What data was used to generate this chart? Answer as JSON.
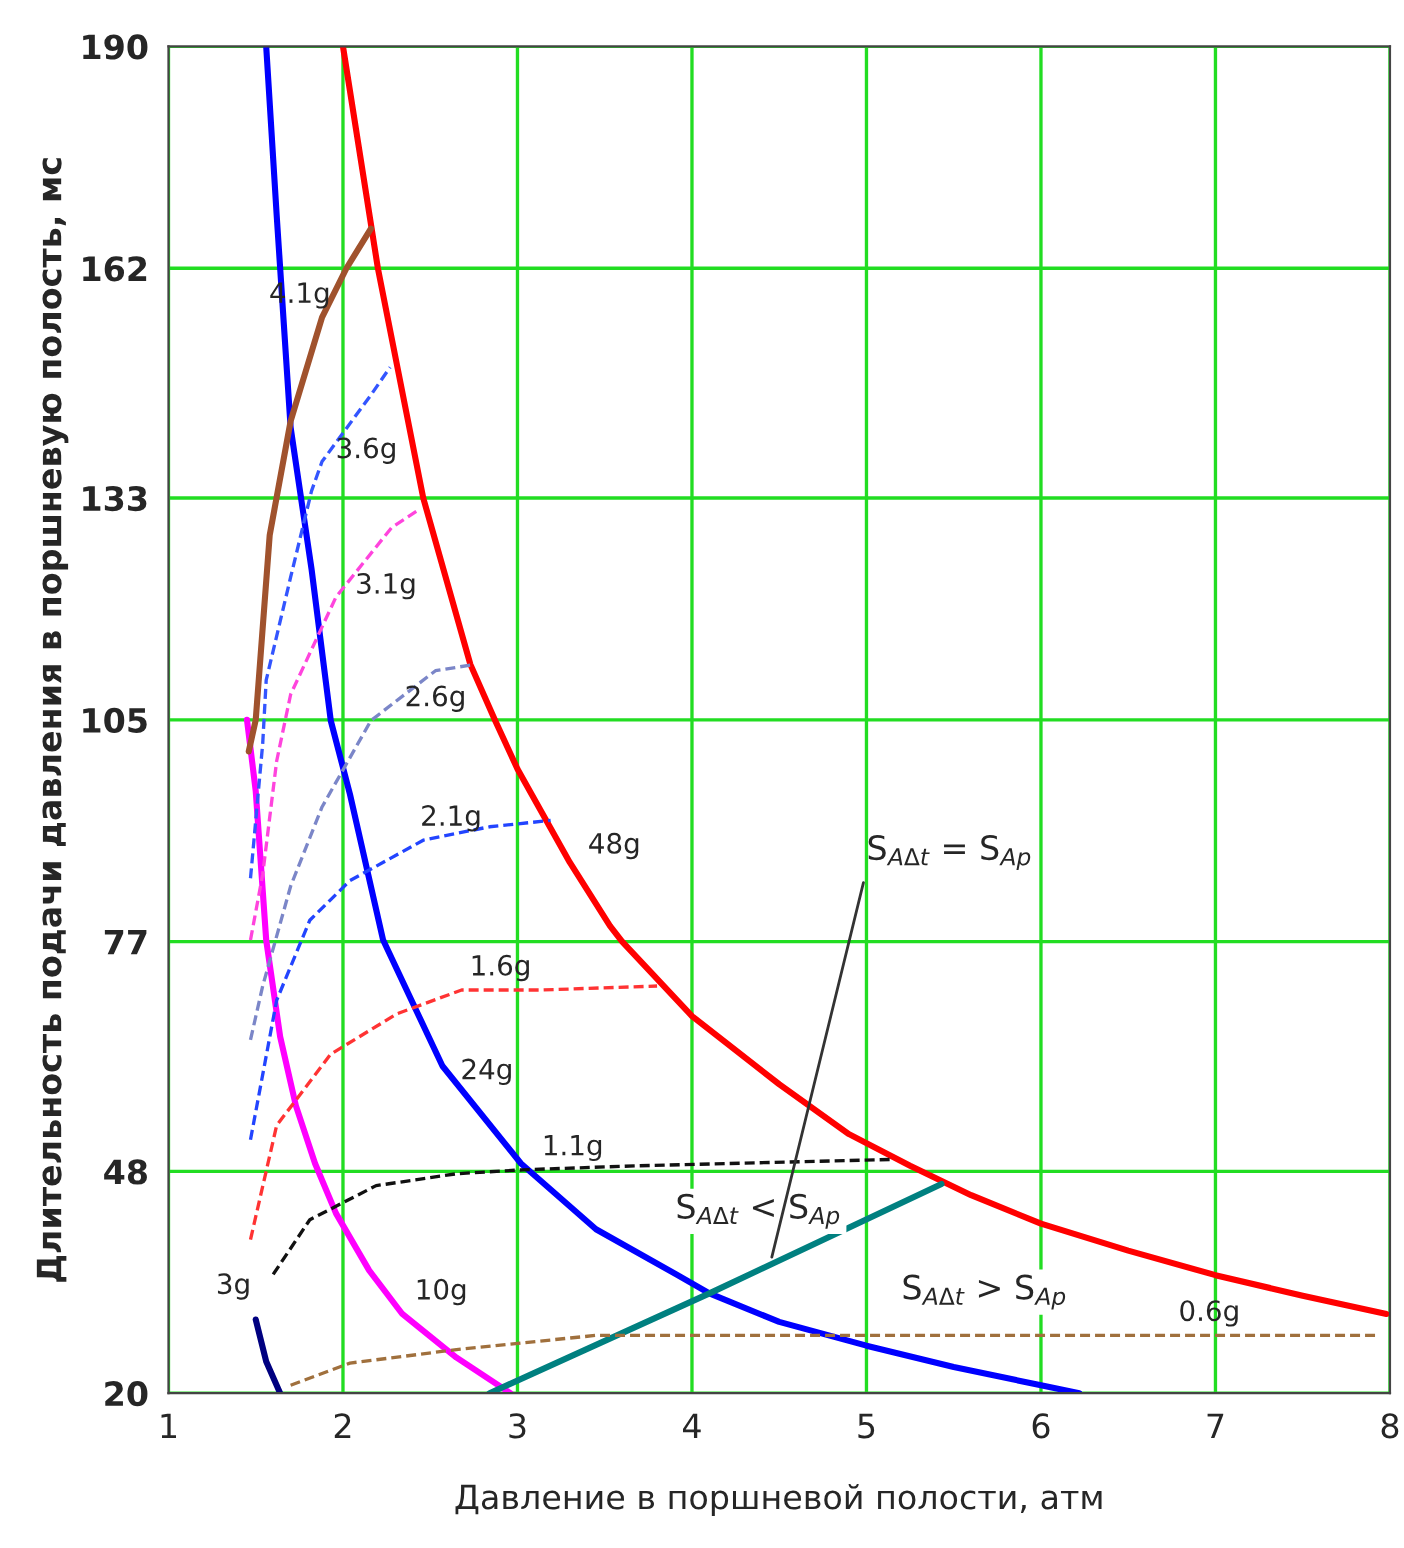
{
  "chart_data": {
    "type": "line",
    "xlabel": "Давление в поршневой полости, атм",
    "ylabel": "Длительность подачи давления в поршневую полость, мс",
    "xlim": [
      1,
      8
    ],
    "ylim": [
      20,
      190
    ],
    "xticks": [
      1,
      2,
      3,
      4,
      5,
      6,
      7,
      8
    ],
    "yticks": [
      20,
      48,
      77,
      105,
      133,
      162,
      190
    ],
    "grid": true,
    "marker": "none",
    "series": [
      {
        "name": "48g",
        "color": "#ff0000",
        "line_style": "solid",
        "x": [
          2.0,
          2.2,
          2.46,
          2.73,
          2.87,
          3.0,
          3.3,
          3.53,
          3.6,
          4.0,
          4.5,
          4.9,
          5.25,
          5.6,
          6.0,
          6.5,
          7.0,
          7.5,
          7.98
        ],
        "values": [
          190,
          162,
          133,
          112,
          105,
          98.8,
          87,
          79,
          77,
          67.6,
          59,
          52.7,
          48.7,
          45,
          41.4,
          38,
          34.9,
          32.3,
          30
        ]
      },
      {
        "name": "24g",
        "color": "#0000ff",
        "line_style": "solid",
        "x": [
          1.56,
          1.62,
          1.7,
          1.82,
          1.93,
          2.04,
          2.23,
          2.57,
          3.02,
          3.45,
          3.91,
          4.1,
          4.5,
          5.0,
          5.5,
          6.0,
          6.22
        ],
        "values": [
          190,
          168.7,
          141.9,
          124,
          104.9,
          95.6,
          77.2,
          61.3,
          49,
          40.7,
          35,
          32.6,
          29,
          26,
          23.3,
          21,
          20
        ]
      },
      {
        "name": "10g",
        "color": "#ff00ff",
        "line_style": "solid",
        "x": [
          1.45,
          1.5,
          1.56,
          1.64,
          1.73,
          1.84,
          1.96,
          2.15,
          2.34,
          2.65,
          2.96
        ],
        "values": [
          105,
          96,
          77.2,
          65,
          56.3,
          49,
          42.7,
          35.5,
          30,
          24.5,
          20
        ]
      },
      {
        "name": "3g",
        "color": "#000080",
        "line_style": "solid",
        "x": [
          1.5,
          1.56,
          1.64
        ],
        "values": [
          29.3,
          24,
          20
        ]
      },
      {
        "color": "#008080",
        "line_style": "solid",
        "x": [
          2.84,
          4.1,
          5.43
        ],
        "values": [
          20,
          32.6,
          46.4
        ]
      },
      {
        "name": "4.1g",
        "color": "#a0522d",
        "line_style": "solid",
        "x": [
          1.46,
          1.5,
          1.58,
          1.7,
          1.88,
          2.02,
          2.16
        ],
        "values": [
          101,
          105,
          128.3,
          142.7,
          155.8,
          162,
          167
        ]
      },
      {
        "name": "3.6g",
        "color": "#3355ff",
        "line_style": "dashed",
        "x": [
          1.47,
          1.54,
          1.56,
          1.7,
          1.82,
          1.88,
          2.16,
          2.27
        ],
        "values": [
          85,
          102,
          110,
          123,
          133.9,
          137.6,
          146,
          149.5
        ]
      },
      {
        "name": "3.1g",
        "color": "#ff44dd",
        "line_style": "dashed",
        "x": [
          1.47,
          1.54,
          1.62,
          1.7,
          1.96,
          2.28,
          2.42
        ],
        "values": [
          77.2,
          85.5,
          99.8,
          108.2,
          120.5,
          129.3,
          131.3
        ]
      },
      {
        "name": "2.6g",
        "color": "#7b86c8",
        "line_style": "dashed",
        "x": [
          1.47,
          1.54,
          1.7,
          1.88,
          2.16,
          2.53,
          2.73
        ],
        "values": [
          64.6,
          71.4,
          84,
          94,
          104.9,
          111.2,
          111.9
        ]
      },
      {
        "name": "2.1g",
        "color": "#2244ff",
        "line_style": "dashed",
        "x": [
          1.47,
          1.62,
          1.81,
          2.04,
          2.46,
          2.84,
          3.19
        ],
        "values": [
          52,
          69.6,
          79.7,
          84.7,
          89.8,
          91.5,
          92.3
        ]
      },
      {
        "name": "1.6g",
        "color": "#ff3333",
        "line_style": "dashed",
        "x": [
          1.47,
          1.62,
          1.93,
          2.31,
          2.68,
          3.14,
          3.8
        ],
        "values": [
          39.4,
          53.8,
          62.8,
          67.9,
          70.9,
          70.9,
          71.4
        ]
      },
      {
        "name": "1.1g",
        "color": "#111111",
        "line_style": "dashed",
        "x": [
          1.6,
          1.81,
          2.19,
          2.65,
          3.03,
          3.68,
          5.14
        ],
        "values": [
          35,
          41.9,
          46.2,
          47.7,
          48.2,
          48.7,
          49.5
        ]
      },
      {
        "name": "0.6g",
        "color": "#a0703d",
        "line_style": "dashed",
        "x": [
          1.7,
          2.04,
          2.65,
          3.45,
          5.0,
          7.92
        ],
        "values": [
          21,
          23.8,
          25.5,
          27.3,
          27.3,
          27.3
        ]
      }
    ],
    "annotations": [
      "S$_{AΔt}$ < S$_{Ap}$",
      "S$_{AΔt}$ > S$_{Ap}$",
      {
        "text": "S$_{AΔt}$ = S$_{Ap}$",
        "x": 4.45,
        "y": 36.5
      }
    ]
  }
}
